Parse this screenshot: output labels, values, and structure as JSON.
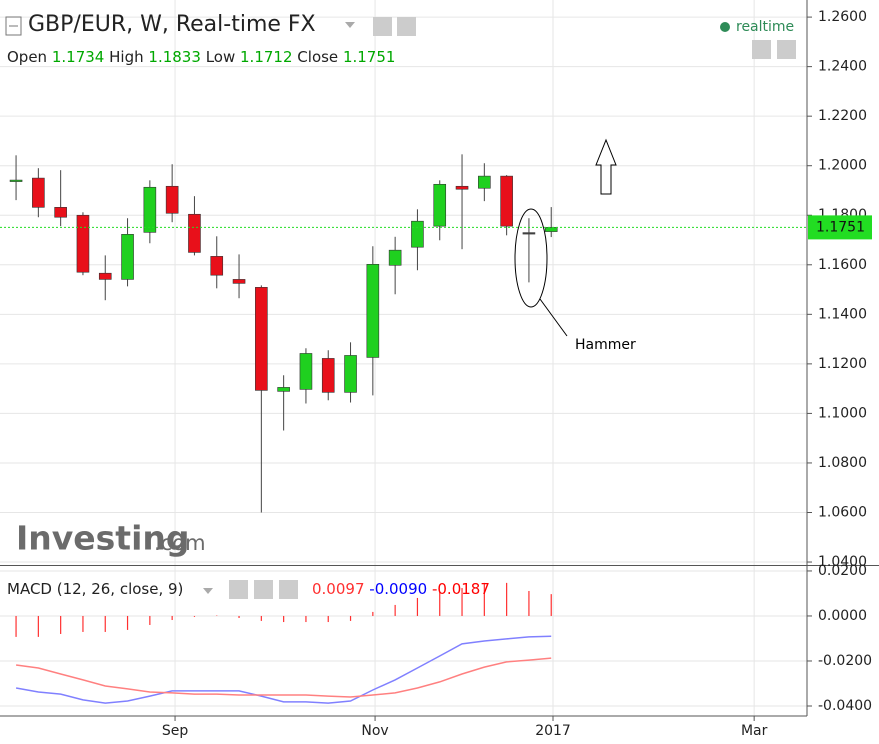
{
  "chart_data": [
    {
      "type": "candlestick",
      "title": "GBP/EUR, W, Real-time FX",
      "status": "realtime",
      "ohlc_labels": [
        "Open",
        "High",
        "Low",
        "Close"
      ],
      "annotation": "Hammer",
      "watermark": [
        "Investing",
        ".com"
      ],
      "categories": [
        null,
        null,
        null,
        null,
        null,
        null,
        null,
        null,
        null,
        null,
        null,
        null,
        null,
        null,
        null,
        null,
        null,
        null,
        null,
        null,
        null,
        null,
        null,
        null,
        null
      ],
      "open": [
        1.1938,
        1.195,
        1.1832,
        1.18,
        1.1566,
        1.1541,
        1.1731,
        1.1917,
        1.1804,
        1.1634,
        1.1541,
        1.1509,
        1.1089,
        1.1097,
        1.1222,
        1.1085,
        1.1226,
        1.1598,
        1.1671,
        1.1756,
        1.1917,
        1.1909,
        1.1958,
        1.173,
        1.1734
      ],
      "high": [
        1.2042,
        1.199,
        1.1982,
        1.1812,
        1.1638,
        1.1788,
        1.1941,
        1.2006,
        1.1877,
        1.1715,
        1.1642,
        1.1517,
        1.1154,
        1.1263,
        1.1255,
        1.1287,
        1.1675,
        1.1713,
        1.1824,
        1.1941,
        1.2046,
        1.201,
        1.1962,
        1.1788,
        1.1833
      ],
      "low": [
        1.1861,
        1.1792,
        1.1756,
        1.1558,
        1.1457,
        1.1513,
        1.1687,
        1.1772,
        1.1638,
        1.1505,
        1.1465,
        1.06,
        1.0931,
        1.104,
        1.1053,
        1.1044,
        1.1073,
        1.1481,
        1.1578,
        1.1699,
        1.1663,
        1.1857,
        1.1719,
        1.1529,
        1.1712
      ],
      "close": [
        1.1942,
        1.1832,
        1.1792,
        1.157,
        1.1541,
        1.1723,
        1.1913,
        1.1808,
        1.165,
        1.1558,
        1.1525,
        1.1093,
        1.1105,
        1.1242,
        1.1085,
        1.1234,
        1.1602,
        1.1659,
        1.1776,
        1.1925,
        1.1905,
        1.1958,
        1.1756,
        1.173,
        1.1751
      ],
      "up_color": "#1fd01f",
      "down_color": "#e8101a",
      "flat_color": "#404040",
      "last_price_color": "#22dd22",
      "xlim": [
        -0.72,
        35.47
      ],
      "ylim": [
        1.0388,
        1.2669
      ],
      "yticks": [
        {
          "value": 1.26,
          "label": "1.2600"
        },
        {
          "value": 1.24,
          "label": "1.2400"
        },
        {
          "value": 1.22,
          "label": "1.2200"
        },
        {
          "value": 1.2,
          "label": "1.2000"
        },
        {
          "value": 1.18,
          "label": "1.1800"
        },
        {
          "value": 1.16,
          "label": "1.1600"
        },
        {
          "value": 1.14,
          "label": "1.1400"
        },
        {
          "value": 1.12,
          "label": "1.1200"
        },
        {
          "value": 1.1,
          "label": "1.1000"
        },
        {
          "value": 1.08,
          "label": "1.0800"
        },
        {
          "value": 1.06,
          "label": "1.0600"
        },
        {
          "value": 1.04,
          "label": "1.0400"
        }
      ],
      "grid": true
    },
    {
      "type": "macd",
      "title": "MACD (12, 26, close, 9)",
      "categories": [
        null,
        null,
        null,
        null,
        null,
        null,
        null,
        null,
        null,
        null,
        null,
        null,
        null,
        null,
        null,
        null,
        null,
        null,
        null,
        null,
        null,
        null,
        null,
        null,
        null
      ],
      "series": [
        {
          "color": "#ff3030",
          "last_label": "0.0097",
          "values": [
            -0.0093,
            -0.0093,
            -0.008,
            -0.0071,
            -0.0071,
            -0.0062,
            -0.004,
            -0.0018,
            -0.0004,
            0.0002,
            -0.0009,
            -0.0022,
            -0.0027,
            -0.0027,
            -0.0027,
            -0.0022,
            0.0018,
            0.0049,
            0.008,
            0.0107,
            0.0124,
            0.0147,
            0.0147,
            0.0111,
            0.0097
          ]
        },
        {
          "color": "#0000ff",
          "line_color": "#8080ff",
          "last_label": "-0.0090",
          "values": [
            -0.032,
            -0.0338,
            -0.0347,
            -0.0373,
            -0.0387,
            -0.0378,
            -0.0356,
            -0.0333,
            -0.0333,
            -0.0333,
            -0.0333,
            -0.0356,
            -0.0382,
            -0.0382,
            -0.0387,
            -0.0378,
            -0.0329,
            -0.0284,
            -0.0231,
            -0.0178,
            -0.0124,
            -0.0111,
            -0.0102,
            -0.0093,
            -0.009
          ]
        },
        {
          "color": "#ff0000",
          "line_color": "#ff8080",
          "last_label": "-0.0187",
          "values": [
            -0.0218,
            -0.0231,
            -0.0258,
            -0.0284,
            -0.0311,
            -0.0324,
            -0.0338,
            -0.0342,
            -0.0347,
            -0.0347,
            -0.0351,
            -0.0351,
            -0.0351,
            -0.0351,
            -0.0356,
            -0.036,
            -0.0351,
            -0.0342,
            -0.032,
            -0.0293,
            -0.0258,
            -0.0227,
            -0.0204,
            -0.0196,
            -0.0187
          ]
        }
      ],
      "xlim": [
        -0.72,
        35.47
      ],
      "xticks": [
        {
          "value": 7.13,
          "label": "Sep"
        },
        {
          "value": 16.1,
          "label": "Nov"
        },
        {
          "value": 24.08,
          "label": "2017"
        },
        {
          "value": 33.1,
          "label": "Mar"
        }
      ],
      "ylim": [
        -0.044,
        0.0222
      ],
      "yticks": [
        {
          "value": 0.02,
          "label": "0.0200"
        },
        {
          "value": 0,
          "label": "0.0000"
        },
        {
          "value": -0.02,
          "label": "-0.0200"
        },
        {
          "value": -0.04,
          "label": "-0.0400"
        }
      ],
      "grid": true
    }
  ]
}
